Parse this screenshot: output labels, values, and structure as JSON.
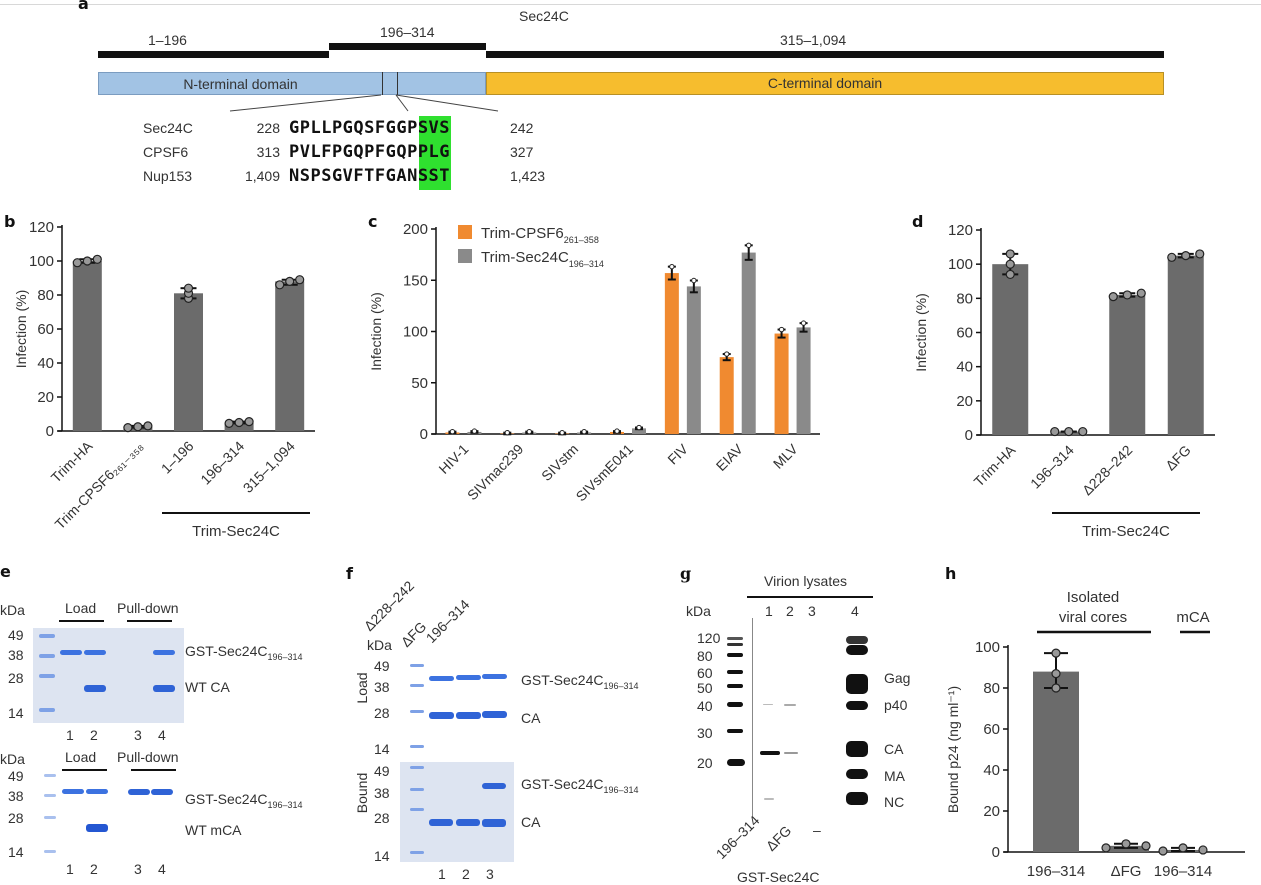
{
  "figure": {
    "panel_labels": [
      "a",
      "b",
      "c",
      "d",
      "e",
      "f",
      "g",
      "h"
    ]
  },
  "panel_a": {
    "protein": "Sec24C",
    "fragments": [
      {
        "label": "1–196",
        "start": 1,
        "end": 196
      },
      {
        "label": "196–314",
        "start": 196,
        "end": 314
      },
      {
        "label": "315–1,094",
        "start": 315,
        "end": 1094
      }
    ],
    "domains": [
      {
        "label": "N-terminal domain",
        "color": "#a2c3e4"
      },
      {
        "label": "C-terminal domain",
        "color": "#f6bd2e"
      }
    ],
    "alignment": [
      {
        "name": "Sec24C",
        "start": "228",
        "seq": "GPLLPGQSFGGPSVS",
        "end": "242"
      },
      {
        "name": "CPSF6",
        "start": "313",
        "seq": "PVLFPGQPFGQPPLG",
        "end": "327"
      },
      {
        "name": "Nup153",
        "start": "1,409",
        "seq": "NSPSGVFTFGANSST",
        "end": "1,423"
      }
    ],
    "highlight_color": "#2fe02f"
  },
  "chart_data": [
    {
      "id": "b",
      "type": "bar",
      "ylabel": "Infection (%)",
      "ylim": [
        0,
        120
      ],
      "yticks": [
        0,
        20,
        40,
        60,
        80,
        100,
        120
      ],
      "categories": [
        "Trim-HA",
        "Trim-CPSF6₂₆₁₋₃₅₈",
        "1–196",
        "196–314",
        "315–1,094"
      ],
      "values": [
        100,
        2.5,
        81,
        5,
        88
      ],
      "points": [
        [
          99,
          100,
          101
        ],
        [
          2,
          2.5,
          3
        ],
        [
          78,
          81,
          84
        ],
        [
          4.5,
          5,
          5.5
        ],
        [
          86,
          88,
          89
        ]
      ],
      "group_label": "Trim-Sec24C",
      "color": "#6b6b6b"
    },
    {
      "id": "c",
      "type": "bar",
      "ylabel": "Infection (%)",
      "ylim": [
        0,
        200
      ],
      "yticks": [
        0,
        50,
        100,
        150,
        200
      ],
      "categories": [
        "HIV-1",
        "SIVmac239",
        "SIVstm",
        "SIVsmE041",
        "FIV",
        "EIAV",
        "MLV"
      ],
      "legend_position": "top-left",
      "series": [
        {
          "name": "Trim-CPSF6₂₆₁₋₃₅₈",
          "color": "#f08a30",
          "values": [
            1.5,
            0.5,
            0.5,
            2,
            157,
            75,
            98
          ]
        },
        {
          "name": "Trim-Sec24C₁₉₆₋₃₁₄",
          "color": "#8a8a8a",
          "values": [
            2,
            1.5,
            1.5,
            5.5,
            144,
            177,
            104
          ]
        }
      ],
      "legend": [
        "Trim-CPSF6",
        "Trim-Sec24C"
      ],
      "legend_sub": [
        "261–358",
        "196–314"
      ]
    },
    {
      "id": "d",
      "type": "bar",
      "ylabel": "Infection (%)",
      "ylim": [
        0,
        120
      ],
      "yticks": [
        0,
        20,
        40,
        60,
        80,
        100,
        120
      ],
      "categories": [
        "Trim-HA",
        "196–314",
        "Δ228–242",
        "ΔFG"
      ],
      "values": [
        100,
        2,
        82,
        105
      ],
      "points": [
        [
          94,
          100,
          106
        ],
        [
          2,
          2,
          2
        ],
        [
          81,
          82,
          83
        ],
        [
          104,
          105,
          106
        ]
      ],
      "group_label": "Trim-Sec24C",
      "color": "#6b6b6b"
    },
    {
      "id": "h",
      "type": "bar",
      "ylabel": "Bound p24 (ng ml⁻¹)",
      "ylim": [
        0,
        100
      ],
      "yticks": [
        0,
        20,
        40,
        60,
        80,
        100
      ],
      "categories": [
        "196–314",
        "ΔFG",
        "196–314"
      ],
      "values": [
        88,
        3,
        1
      ],
      "points": [
        [
          80,
          87,
          97
        ],
        [
          2,
          4,
          3
        ],
        [
          0.5,
          2,
          1
        ]
      ],
      "groups": [
        {
          "label": "Isolated viral cores",
          "line1": "Isolated",
          "line2": "viral cores",
          "span": [
            0,
            1
          ]
        },
        {
          "label": "mCA",
          "span": [
            2,
            2
          ]
        }
      ],
      "color": "#6b6b6b"
    }
  ],
  "panel_e": {
    "kda_label": "kDa",
    "markers": [
      "49",
      "38",
      "28",
      "14"
    ],
    "top": {
      "load_label": "Load",
      "pulldown_label": "Pull-down",
      "band1": "GST-Sec24C",
      "band1_sub": "196–314",
      "band2": "WT CA",
      "lanes": [
        "1",
        "2",
        "3",
        "4"
      ]
    },
    "bottom": {
      "load_label": "Load",
      "pulldown_label": "Pull-down",
      "band1": "GST-Sec24C",
      "band1_sub": "196–314",
      "band2": "WT mCA",
      "lanes": [
        "1",
        "2",
        "3",
        "4"
      ]
    }
  },
  "panel_f": {
    "kda_label": "kDa",
    "lane_headers": [
      "Δ228–242",
      "ΔFG",
      "196–314"
    ],
    "load_label": "Load",
    "bound_label": "Bound",
    "markers": [
      "49",
      "38",
      "28",
      "14"
    ],
    "band1": "GST-Sec24C",
    "band1_sub": "196–314",
    "band2": "CA",
    "lanes": [
      "1",
      "2",
      "3"
    ]
  },
  "panel_g": {
    "header": "Virion lysates",
    "kda_label": "kDa",
    "markers": [
      "120",
      "80",
      "60",
      "50",
      "40",
      "30",
      "20"
    ],
    "lanes": [
      "1",
      "2",
      "3",
      "4"
    ],
    "bands": [
      "Gag",
      "p40",
      "CA",
      "MA",
      "NC"
    ],
    "lane_labels": [
      "196–314",
      "ΔFG",
      "–"
    ],
    "footer": "GST-Sec24C"
  }
}
